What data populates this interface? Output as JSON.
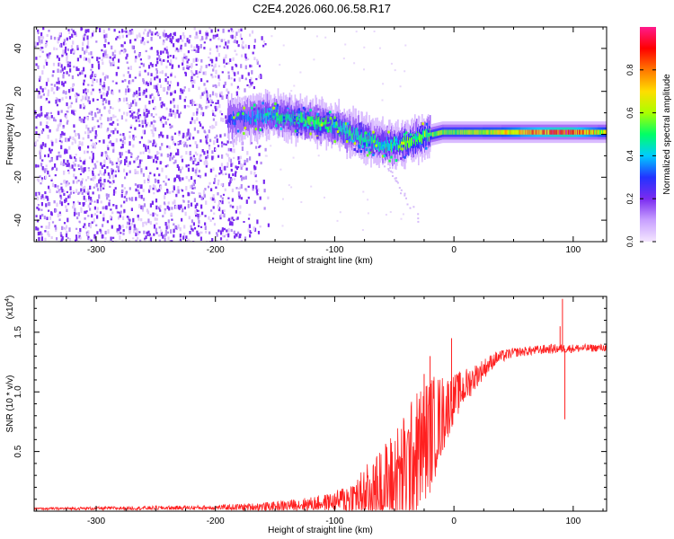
{
  "title": "C2E4.2026.060.06.58.R17",
  "colors": {
    "signal": "#ff2020",
    "scatter": "#7a2bf0",
    "axis": "#000000"
  },
  "chart_data": [
    {
      "type": "heatmap",
      "name": "spectrogram",
      "xlabel": "Height of straight line (km)",
      "ylabel": "Frequency (Hz)",
      "xlim": [
        -352,
        128
      ],
      "ylim": [
        -50,
        50
      ],
      "xticks": [
        -300,
        -200,
        -100,
        0,
        100
      ],
      "yticks": [
        -40,
        -20,
        0,
        20,
        40
      ],
      "xtick_labels": [
        "-300",
        "-200",
        "-100",
        "0",
        "100"
      ],
      "ytick_labels": [
        "-40",
        "-20",
        "0",
        "20",
        "40"
      ],
      "colorbar": {
        "label": "Normalized spectral amplitude",
        "range": [
          0,
          1
        ],
        "ticks": [
          0.0,
          0.2,
          0.4,
          0.6,
          0.8
        ],
        "tick_labels": [
          "0.0",
          "0.2",
          "0.4",
          "0.6",
          "0.8"
        ],
        "colors": [
          "#f4e6ff",
          "#c8a0ff",
          "#7a2bf0",
          "#2233ff",
          "#00ccff",
          "#00ff66",
          "#aaff00",
          "#ffdd00",
          "#ff7700",
          "#ff0000",
          "#ff1a8c"
        ]
      },
      "noise_region_x": [
        -352,
        -160
      ],
      "ridge": [
        {
          "x": -180,
          "freq": 7
        },
        {
          "x": -160,
          "freq": 9
        },
        {
          "x": -140,
          "freq": 8
        },
        {
          "x": -120,
          "freq": 6
        },
        {
          "x": -100,
          "freq": 4
        },
        {
          "x": -85,
          "freq": 0
        },
        {
          "x": -70,
          "freq": -3
        },
        {
          "x": -55,
          "freq": -5
        },
        {
          "x": -40,
          "freq": -4
        },
        {
          "x": -25,
          "freq": -1
        },
        {
          "x": -10,
          "freq": 1
        },
        {
          "x": 0,
          "freq": 1
        },
        {
          "x": 30,
          "freq": 1
        },
        {
          "x": 60,
          "freq": 1
        },
        {
          "x": 90,
          "freq": 1
        },
        {
          "x": 128,
          "freq": 1
        }
      ],
      "ridge_amplitude": [
        {
          "x": -180,
          "amp": 0.3
        },
        {
          "x": -150,
          "amp": 0.45
        },
        {
          "x": -120,
          "amp": 0.5
        },
        {
          "x": -90,
          "amp": 0.5
        },
        {
          "x": -60,
          "amp": 0.45
        },
        {
          "x": -30,
          "amp": 0.55
        },
        {
          "x": 0,
          "amp": 0.6
        },
        {
          "x": 40,
          "amp": 0.65
        },
        {
          "x": 80,
          "amp": 0.85
        },
        {
          "x": 95,
          "amp": 0.9
        },
        {
          "x": 128,
          "amp": 0.6
        }
      ]
    },
    {
      "type": "line",
      "name": "snr",
      "xlabel": "Height of straight line (km)",
      "ylabel": "SNR (10 * v/v)",
      "scale_label": "(x10",
      "scale_exponent": "4",
      "scale_close": ")",
      "xlim": [
        -352,
        128
      ],
      "ylim": [
        0,
        1.8
      ],
      "xticks": [
        -300,
        -200,
        -100,
        0,
        100
      ],
      "yticks": [
        0.5,
        1.0,
        1.5
      ],
      "xtick_labels": [
        "-300",
        "-200",
        "-100",
        "0",
        "100"
      ],
      "ytick_labels": [
        "0.5",
        "1.0",
        "1.5"
      ],
      "envelope": [
        {
          "x": -352,
          "base": 0.02,
          "noise": 0.01
        },
        {
          "x": -200,
          "base": 0.03,
          "noise": 0.02
        },
        {
          "x": -150,
          "base": 0.04,
          "noise": 0.04
        },
        {
          "x": -120,
          "base": 0.06,
          "noise": 0.06
        },
        {
          "x": -100,
          "base": 0.08,
          "noise": 0.08
        },
        {
          "x": -80,
          "base": 0.12,
          "noise": 0.2
        },
        {
          "x": -60,
          "base": 0.2,
          "noise": 0.35
        },
        {
          "x": -40,
          "base": 0.35,
          "noise": 0.5
        },
        {
          "x": -30,
          "base": 0.5,
          "noise": 0.55
        },
        {
          "x": -20,
          "base": 0.65,
          "noise": 0.5
        },
        {
          "x": -10,
          "base": 0.8,
          "noise": 0.35
        },
        {
          "x": 0,
          "base": 0.95,
          "noise": 0.2
        },
        {
          "x": 20,
          "base": 1.15,
          "noise": 0.1
        },
        {
          "x": 35,
          "base": 1.28,
          "noise": 0.06
        },
        {
          "x": 50,
          "base": 1.33,
          "noise": 0.04
        },
        {
          "x": 80,
          "base": 1.36,
          "noise": 0.04
        },
        {
          "x": 128,
          "base": 1.37,
          "noise": 0.03
        }
      ],
      "spikes": [
        {
          "x": 91,
          "value": 1.78
        },
        {
          "x": 93,
          "value": 0.77
        },
        {
          "x": 89,
          "value": 1.55
        },
        {
          "x": -2,
          "value": 1.45
        },
        {
          "x": -20,
          "value": 1.3
        },
        {
          "x": -25,
          "value": 1.15
        }
      ]
    }
  ]
}
